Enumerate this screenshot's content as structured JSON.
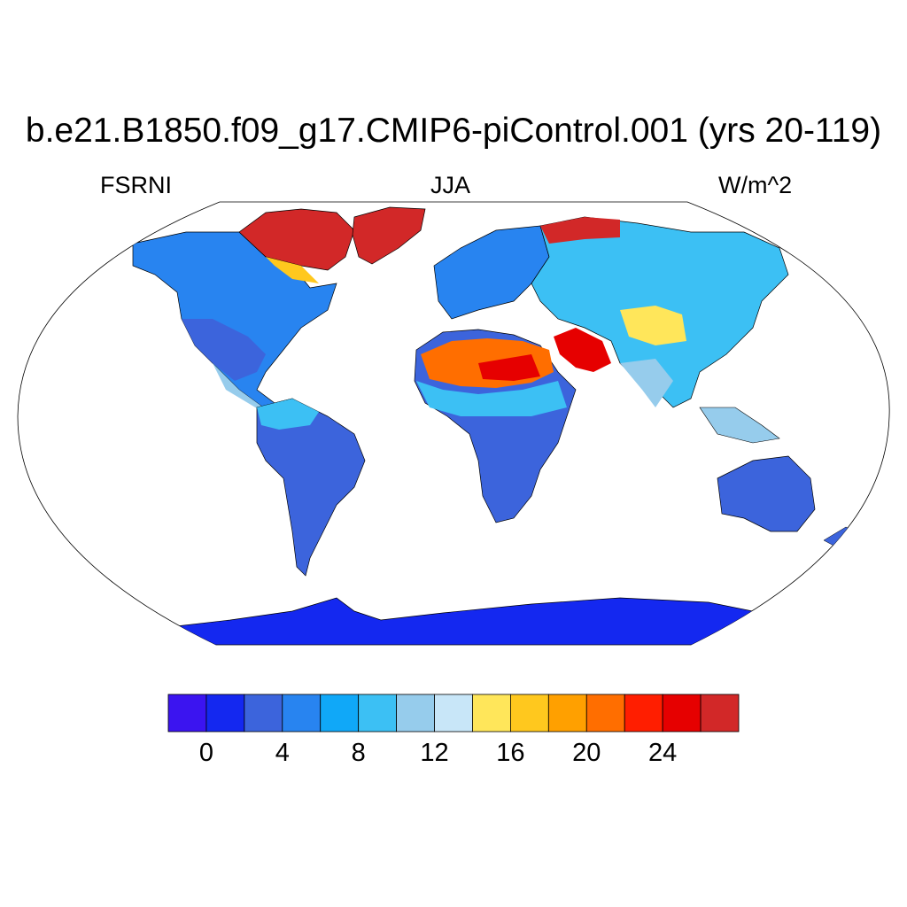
{
  "title": "b.e21.B1850.f09_g17.CMIP6-piControl.001 (yrs 20-119)",
  "left_label": "FSRNI",
  "center_label": "JJA",
  "right_label": "W/m^2",
  "colorbar": {
    "colors": [
      "#3b14f0",
      "#1428f0",
      "#3c64dc",
      "#2884f0",
      "#10a8f8",
      "#3cc0f4",
      "#96ccec",
      "#c8e6f8",
      "#ffe65a",
      "#ffc81e",
      "#ffa000",
      "#ff6e00",
      "#ff1e00",
      "#e60000",
      "#d22828"
    ],
    "tick_labels": [
      "0",
      "4",
      "8",
      "12",
      "16",
      "20",
      "24"
    ]
  },
  "map": {
    "projection": "Robinson",
    "ocean_color": "#ffffff",
    "antarctica_color": "#1428f0"
  }
}
